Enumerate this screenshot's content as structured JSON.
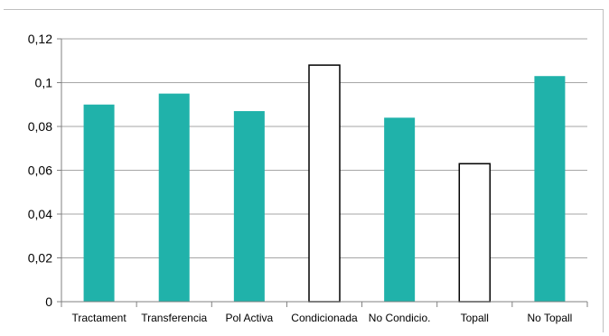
{
  "chart_data": {
    "type": "bar",
    "title": "",
    "xlabel": "",
    "ylabel": "",
    "categories": [
      "Tractament",
      "Transferencia",
      "Pol Activa",
      "Condicionada",
      "No Condicio.",
      "Topall",
      "No Topall"
    ],
    "values": [
      0.09,
      0.095,
      0.087,
      0.108,
      0.084,
      0.063,
      0.103
    ],
    "styles": [
      "filled",
      "filled",
      "filled",
      "outline",
      "filled",
      "outline",
      "filled"
    ],
    "ylim": [
      0,
      0.12
    ],
    "yticks": [
      0,
      0.02,
      0.04,
      0.06,
      0.08,
      0.1,
      0.12
    ],
    "ytick_labels": [
      "0",
      "0,02",
      "0,04",
      "0,06",
      "0,08",
      "0,1",
      "0,12"
    ],
    "grid": true,
    "legend": "none",
    "colors": {
      "filled": "#20b2aa",
      "outline_fill": "#ffffff",
      "outline_stroke": "#000000",
      "grid": "#a6a6a6",
      "axis": "#808080"
    }
  }
}
